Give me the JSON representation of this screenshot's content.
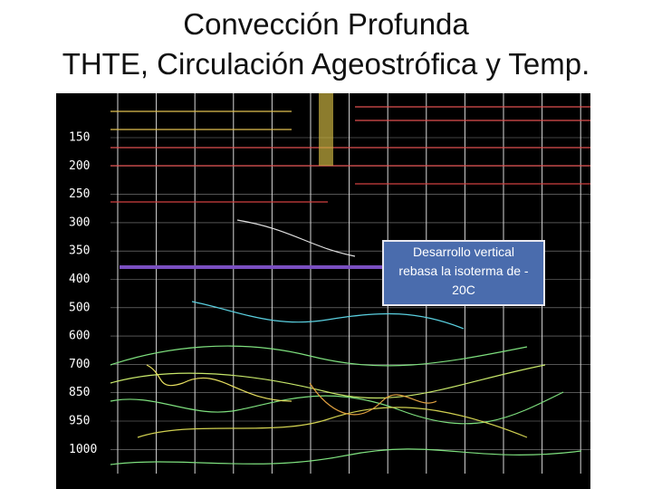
{
  "title": {
    "line1": "Convección Profunda",
    "line2": "THTE, Circulación Ageostrófica y Temp."
  },
  "figure": {
    "pressure_labels": [
      "150",
      "200",
      "250",
      "300",
      "350",
      "400",
      "500",
      "600",
      "700",
      "850",
      "950",
      "1000"
    ]
  },
  "annotation": {
    "lines": [
      "Desarrollo vertical",
      "rebasa la isoterma de -",
      "20C"
    ]
  }
}
